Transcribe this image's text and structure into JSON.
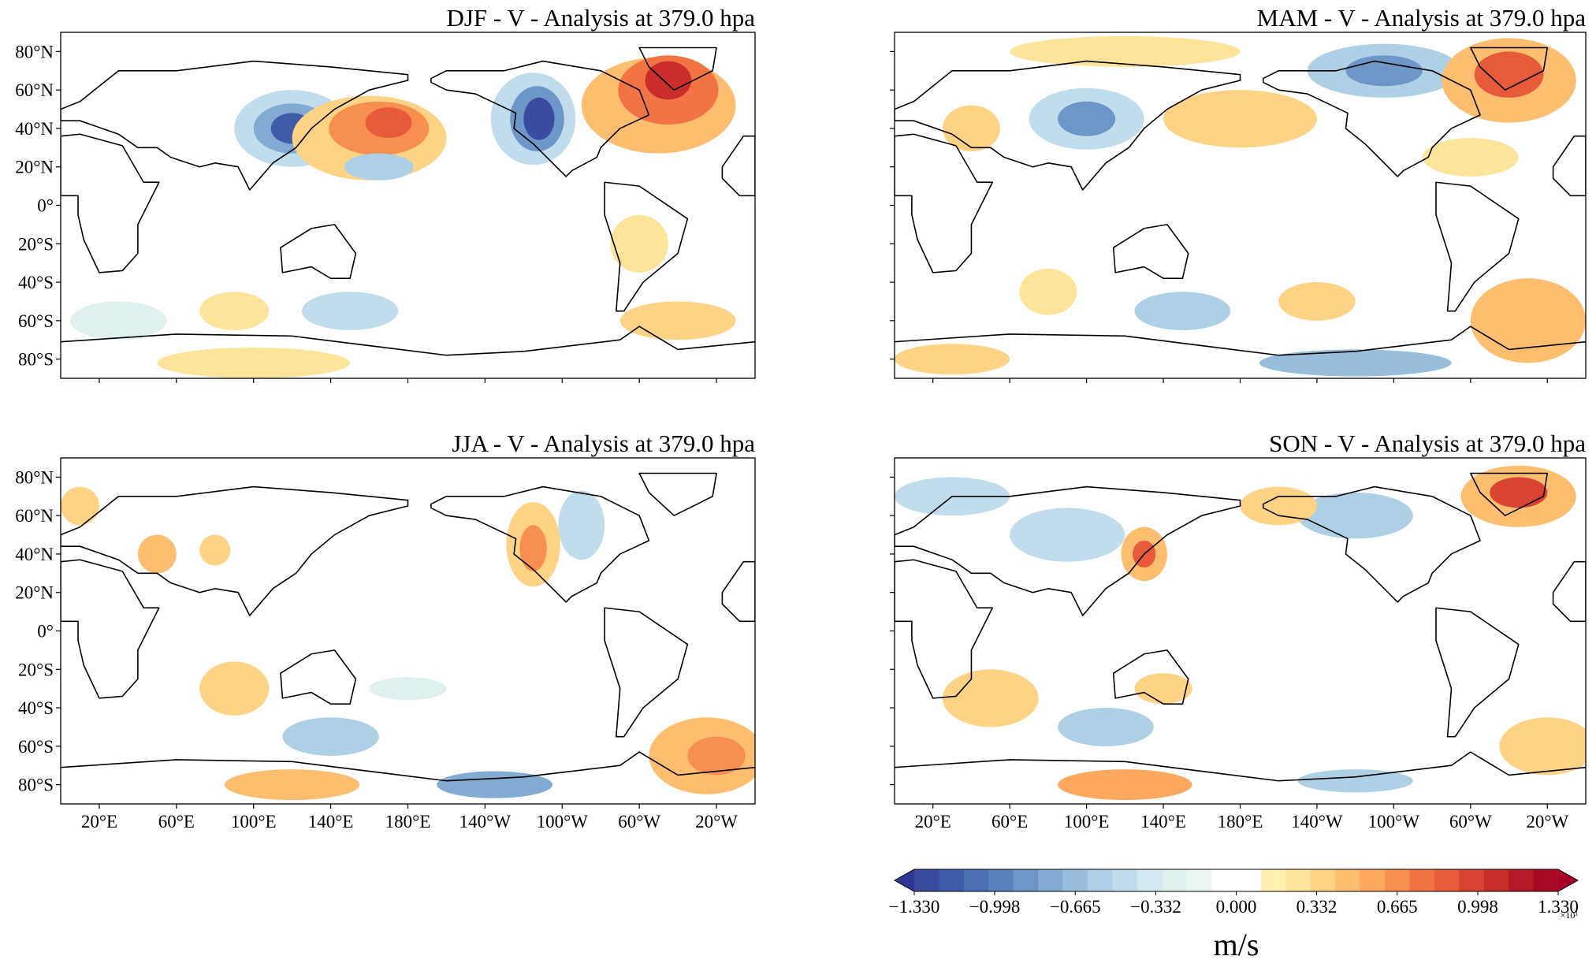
{
  "panels": [
    {
      "title": "DJF - V - Analysis at 379.0 hpa"
    },
    {
      "title": "MAM - V - Analysis at 379.0 hpa"
    },
    {
      "title": "JJA - V - Analysis at 379.0 hpa"
    },
    {
      "title": "SON - V - Analysis at 379.0 hpa"
    }
  ],
  "xlim": [
    0,
    360
  ],
  "ylim": [
    -90,
    90
  ],
  "lat_ticks": [
    {
      "value": 80,
      "label": "80°N"
    },
    {
      "value": 60,
      "label": "60°N"
    },
    {
      "value": 40,
      "label": "40°N"
    },
    {
      "value": 20,
      "label": "20°N"
    },
    {
      "value": 0,
      "label": "0°"
    },
    {
      "value": -20,
      "label": "20°S"
    },
    {
      "value": -40,
      "label": "40°S"
    },
    {
      "value": -60,
      "label": "60°S"
    },
    {
      "value": -80,
      "label": "80°S"
    }
  ],
  "lon_ticks": [
    {
      "value": 20,
      "label": "20°E"
    },
    {
      "value": 60,
      "label": "60°E"
    },
    {
      "value": 100,
      "label": "100°E"
    },
    {
      "value": 140,
      "label": "140°E"
    },
    {
      "value": 180,
      "label": "180°E"
    },
    {
      "value": 220,
      "label": "140°W"
    },
    {
      "value": 260,
      "label": "100°W"
    },
    {
      "value": 300,
      "label": "60°W"
    },
    {
      "value": 340,
      "label": "20°W"
    }
  ],
  "colorbar": {
    "lim": [
      -1.33,
      1.33
    ],
    "ticks": [
      {
        "value": -1.33,
        "label": "−1.330"
      },
      {
        "value": -0.998,
        "label": "−0.998"
      },
      {
        "value": -0.665,
        "label": "−0.665"
      },
      {
        "value": -0.332,
        "label": "−0.332"
      },
      {
        "value": 0,
        "label": "0.000"
      },
      {
        "value": 0.332,
        "label": "0.332"
      },
      {
        "value": 0.665,
        "label": "0.665"
      },
      {
        "value": 0.998,
        "label": "0.998"
      },
      {
        "value": 1.33,
        "label": "1.330"
      }
    ],
    "colors": [
      "#3a4ba0",
      "#3f5ca8",
      "#4a6fb2",
      "#5a83bd",
      "#6c97c8",
      "#81abd3",
      "#97bedc",
      "#add0e5",
      "#c1ddec",
      "#d3e8f0",
      "#e0f0ee",
      "#eaf5ef",
      "#ffffff",
      "#ffffff",
      "#fff0b0",
      "#fee49a",
      "#fed385",
      "#fdbe70",
      "#fca85f",
      "#f88f51",
      "#f27445",
      "#e75a3a",
      "#d94430",
      "#c92e2a",
      "#b51a28",
      "#a80a26"
    ],
    "extend_colors": [
      "#313695",
      "#a50026"
    ],
    "label": "m/s",
    "offset": "×10¹"
  }
}
